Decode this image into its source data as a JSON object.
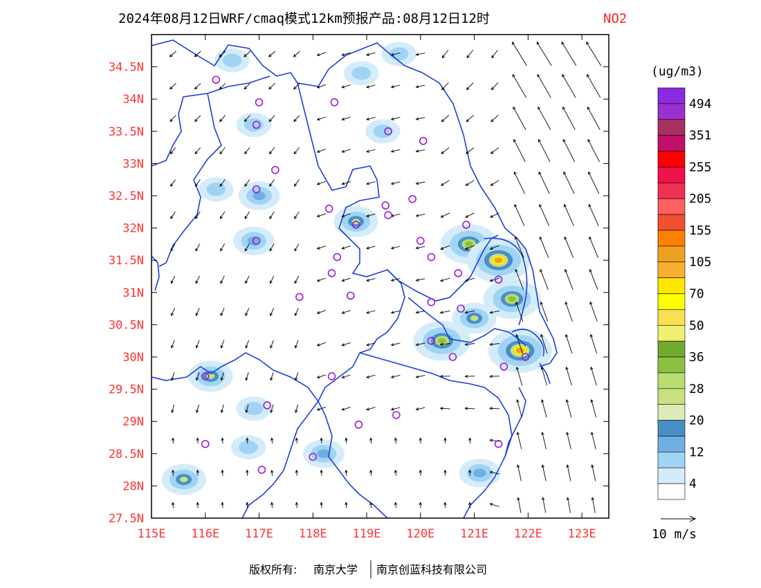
{
  "title": {
    "main": "2024年08月12日WRF/cmaq模式12km预报产品:08月12日12时",
    "species": "NO2"
  },
  "axes": {
    "lat_labels": [
      "34.5N",
      "34N",
      "33.5N",
      "33N",
      "32.5N",
      "32N",
      "31.5N",
      "31N",
      "30.5N",
      "30N",
      "29.5N",
      "29N",
      "28.5N",
      "28N",
      "27.5N"
    ],
    "lat_values": [
      34.5,
      34,
      33.5,
      33,
      32.5,
      32,
      31.5,
      31,
      30.5,
      30,
      29.5,
      29,
      28.5,
      28,
      27.5
    ],
    "lon_labels": [
      "115E",
      "116E",
      "117E",
      "118E",
      "119E",
      "120E",
      "121E",
      "122E",
      "123E"
    ],
    "lon_values": [
      115,
      116,
      117,
      118,
      119,
      120,
      121,
      122,
      123
    ],
    "lon_range": [
      115,
      123.5
    ],
    "lat_range": [
      27.5,
      35
    ]
  },
  "colorbar": {
    "unit": "(ug/m3)",
    "labels": [
      "494",
      "351",
      "255",
      "205",
      "155",
      "105",
      "70",
      "50",
      "36",
      "28",
      "20",
      "12",
      "4"
    ],
    "colors_top_to_bottom": [
      "#8a2be2",
      "#9b30d0",
      "#a83060",
      "#c0106a",
      "#ff0000",
      "#f0104a",
      "#f03050",
      "#ff6060",
      "#f05030",
      "#ff8000",
      "#f0a020",
      "#f8b030",
      "#ffe800",
      "#ffff00",
      "#f8e050",
      "#f0f070",
      "#70aa30",
      "#8cc040",
      "#b8dc70",
      "#c8e080",
      "#dcecb8",
      "#4a8ec8",
      "#70b0e0",
      "#a0d4f4",
      "#d4ecfa",
      "#ffffff"
    ]
  },
  "wind_reference": {
    "label": "10 m/s"
  },
  "footer": {
    "copyright_label": "版权所有:",
    "owner1": "南京大学",
    "owner2": "南京创蓝科技有限公司"
  },
  "map": {
    "monitoring_sites": [
      [
        116.2,
        34.3
      ],
      [
        117.0,
        33.95
      ],
      [
        118.4,
        33.95
      ],
      [
        119.4,
        33.5
      ],
      [
        120.05,
        33.35
      ],
      [
        116.95,
        33.6
      ],
      [
        117.3,
        32.9
      ],
      [
        116.95,
        32.6
      ],
      [
        118.3,
        32.3
      ],
      [
        119.35,
        32.35
      ],
      [
        119.85,
        32.45
      ],
      [
        119.4,
        32.2
      ],
      [
        118.8,
        32.05
      ],
      [
        116.95,
        31.8
      ],
      [
        118.45,
        31.55
      ],
      [
        118.35,
        31.3
      ],
      [
        120.85,
        32.05
      ],
      [
        120.0,
        31.8
      ],
      [
        120.2,
        31.55
      ],
      [
        120.7,
        31.3
      ],
      [
        121.45,
        31.2
      ],
      [
        117.75,
        30.93
      ],
      [
        118.7,
        30.95
      ],
      [
        120.2,
        30.85
      ],
      [
        120.75,
        30.75
      ],
      [
        120.2,
        30.25
      ],
      [
        120.6,
        30.0
      ],
      [
        121.55,
        29.85
      ],
      [
        121.95,
        30.0
      ],
      [
        116.0,
        29.7
      ],
      [
        118.35,
        29.7
      ],
      [
        117.15,
        29.25
      ],
      [
        119.55,
        29.1
      ],
      [
        118.85,
        28.95
      ],
      [
        116.0,
        28.65
      ],
      [
        121.45,
        28.65
      ],
      [
        118.0,
        28.45
      ],
      [
        117.05,
        28.25
      ]
    ],
    "concentration_blobs": [
      {
        "lon": 116.5,
        "lat": 34.6,
        "level": 1
      },
      {
        "lon": 118.9,
        "lat": 34.4,
        "level": 1
      },
      {
        "lon": 119.6,
        "lat": 34.7,
        "level": 1
      },
      {
        "lon": 116.9,
        "lat": 33.6,
        "level": 1
      },
      {
        "lon": 119.3,
        "lat": 33.5,
        "level": 1
      },
      {
        "lon": 116.2,
        "lat": 32.6,
        "level": 1
      },
      {
        "lon": 117.0,
        "lat": 32.5,
        "level": 2
      },
      {
        "lon": 118.8,
        "lat": 32.1,
        "level": 3
      },
      {
        "lon": 116.9,
        "lat": 31.8,
        "level": 2
      },
      {
        "lon": 120.9,
        "lat": 31.75,
        "level": 4
      },
      {
        "lon": 121.45,
        "lat": 31.5,
        "level": 5
      },
      {
        "lon": 121.7,
        "lat": 30.9,
        "level": 4
      },
      {
        "lon": 121.0,
        "lat": 30.6,
        "level": 3
      },
      {
        "lon": 120.4,
        "lat": 30.25,
        "level": 4
      },
      {
        "lon": 121.85,
        "lat": 30.1,
        "level": 5
      },
      {
        "lon": 116.1,
        "lat": 29.7,
        "level": 3
      },
      {
        "lon": 116.9,
        "lat": 29.2,
        "level": 1
      },
      {
        "lon": 118.2,
        "lat": 28.5,
        "level": 2
      },
      {
        "lon": 115.6,
        "lat": 28.1,
        "level": 3
      },
      {
        "lon": 121.1,
        "lat": 28.2,
        "level": 2
      },
      {
        "lon": 116.8,
        "lat": 28.6,
        "level": 1
      }
    ]
  }
}
